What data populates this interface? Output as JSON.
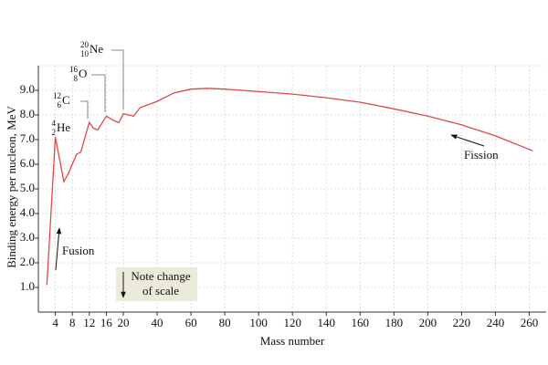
{
  "chart_data": {
    "type": "line",
    "x_label": "Mass number",
    "y_label": "Binding energy per nucleon, MeV",
    "x": [
      2,
      4,
      6,
      7,
      9,
      10,
      12,
      13,
      14,
      16,
      18,
      19,
      20,
      26,
      30,
      40,
      50,
      60,
      70,
      80,
      100,
      120,
      140,
      160,
      180,
      200,
      220,
      240,
      262
    ],
    "values": [
      1.1,
      7.1,
      5.3,
      5.6,
      6.4,
      6.5,
      7.7,
      7.45,
      7.4,
      7.95,
      7.75,
      7.7,
      8.05,
      7.95,
      8.3,
      8.55,
      8.9,
      9.05,
      9.08,
      9.05,
      8.95,
      8.85,
      8.7,
      8.52,
      8.25,
      7.95,
      7.6,
      7.15,
      6.55
    ],
    "color": "#e04848",
    "xlim": [
      0,
      270
    ],
    "x_scale_break": 20,
    "xticks": [
      4,
      8,
      12,
      16,
      20,
      40,
      60,
      80,
      100,
      120,
      140,
      160,
      180,
      200,
      220,
      240,
      260
    ],
    "ylim": [
      0,
      10
    ],
    "yticks": [
      {
        "value": 1,
        "label": "1.0"
      },
      {
        "value": 2,
        "label": "2.0"
      },
      {
        "value": 3,
        "label": "3.0"
      },
      {
        "value": 4,
        "label": "4.0"
      },
      {
        "value": 5,
        "label": "5.0"
      },
      {
        "value": 6,
        "label": "6.0"
      },
      {
        "value": 7,
        "label": "7.0"
      },
      {
        "value": 8,
        "label": "8.0"
      },
      {
        "value": 9,
        "label": "9.0"
      }
    ],
    "grid": true,
    "nuclides": [
      {
        "mass": "4",
        "number": "2",
        "symbol": "He"
      },
      {
        "mass": "12",
        "number": "6",
        "symbol": "C"
      },
      {
        "mass": "16",
        "number": "8",
        "symbol": "O"
      },
      {
        "mass": "20",
        "number": "10",
        "symbol": "Ne"
      }
    ],
    "annotations": {
      "fusion": "Fusion",
      "fission": "Fission",
      "note": [
        "Note change",
        "of scale"
      ]
    }
  }
}
